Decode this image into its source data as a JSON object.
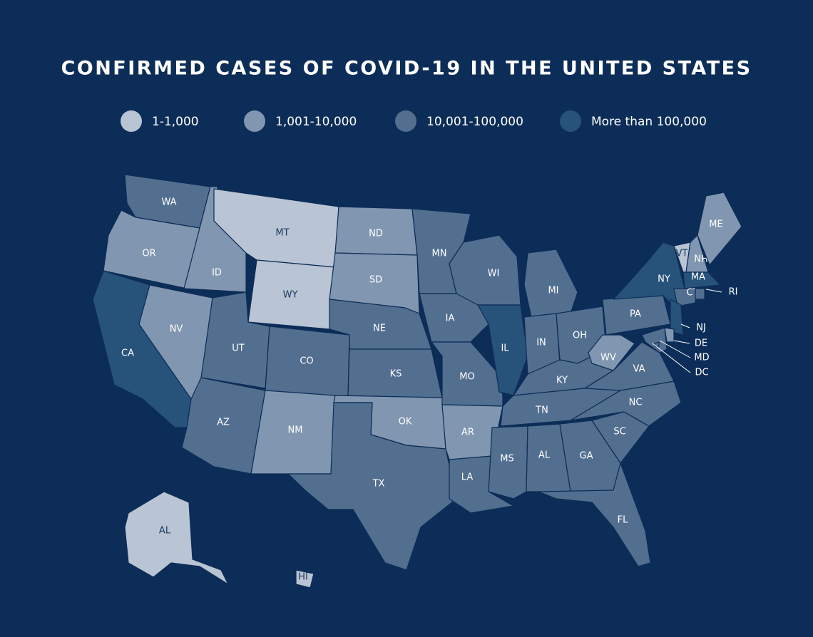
{
  "title": "CONFIRMED CASES OF COVID-19 IN THE UNITED STATES",
  "legend": [
    {
      "label": "1-1,000",
      "color": "#b9c4d4"
    },
    {
      "label": "1,001-10,000",
      "color": "#8196b0"
    },
    {
      "label": "10,001-100,000",
      "color": "#536f90"
    },
    {
      "label": "More than 100,000",
      "color": "#27527a"
    }
  ],
  "states": [
    {
      "label": "WA",
      "level": 2
    },
    {
      "label": "OR",
      "level": 1
    },
    {
      "label": "CA",
      "level": 3
    },
    {
      "label": "NV",
      "level": 1
    },
    {
      "label": "ID",
      "level": 1
    },
    {
      "label": "MT",
      "level": 0
    },
    {
      "label": "WY",
      "level": 0
    },
    {
      "label": "UT",
      "level": 2
    },
    {
      "label": "CO",
      "level": 2
    },
    {
      "label": "AZ",
      "level": 2
    },
    {
      "label": "NM",
      "level": 1
    },
    {
      "label": "ND",
      "level": 1
    },
    {
      "label": "SD",
      "level": 1
    },
    {
      "label": "NE",
      "level": 2
    },
    {
      "label": "KS",
      "level": 2
    },
    {
      "label": "OK",
      "level": 1
    },
    {
      "label": "TX",
      "level": 2
    },
    {
      "label": "MN",
      "level": 2
    },
    {
      "label": "IA",
      "level": 2
    },
    {
      "label": "MO",
      "level": 2
    },
    {
      "label": "AR",
      "level": 1
    },
    {
      "label": "LA",
      "level": 2
    },
    {
      "label": "WI",
      "level": 2
    },
    {
      "label": "IL",
      "level": 3
    },
    {
      "label": "MI",
      "level": 2
    },
    {
      "label": "IN",
      "level": 2
    },
    {
      "label": "OH",
      "level": 2
    },
    {
      "label": "KY",
      "level": 2
    },
    {
      "label": "TN",
      "level": 2
    },
    {
      "label": "MS",
      "level": 2
    },
    {
      "label": "AL",
      "level": 2
    },
    {
      "label": "GA",
      "level": 2
    },
    {
      "label": "FL",
      "level": 2
    },
    {
      "label": "SC",
      "level": 2
    },
    {
      "label": "NC",
      "level": 2
    },
    {
      "label": "VA",
      "level": 2
    },
    {
      "label": "WV",
      "level": 1
    },
    {
      "label": "PA",
      "level": 2
    },
    {
      "label": "NY",
      "level": 3
    },
    {
      "label": "VT",
      "level": 0
    },
    {
      "label": "NH",
      "level": 1
    },
    {
      "label": "ME",
      "level": 1
    },
    {
      "label": "MA",
      "level": 3
    },
    {
      "label": "CT",
      "level": 2
    },
    {
      "label": "RI",
      "level": 2
    },
    {
      "label": "NJ",
      "level": 3
    },
    {
      "label": "DE",
      "level": 1
    },
    {
      "label": "MD",
      "level": 2
    },
    {
      "label": "DC",
      "level": 2
    },
    {
      "label": "AL",
      "level": 0
    },
    {
      "label": "HI",
      "level": 0
    }
  ]
}
